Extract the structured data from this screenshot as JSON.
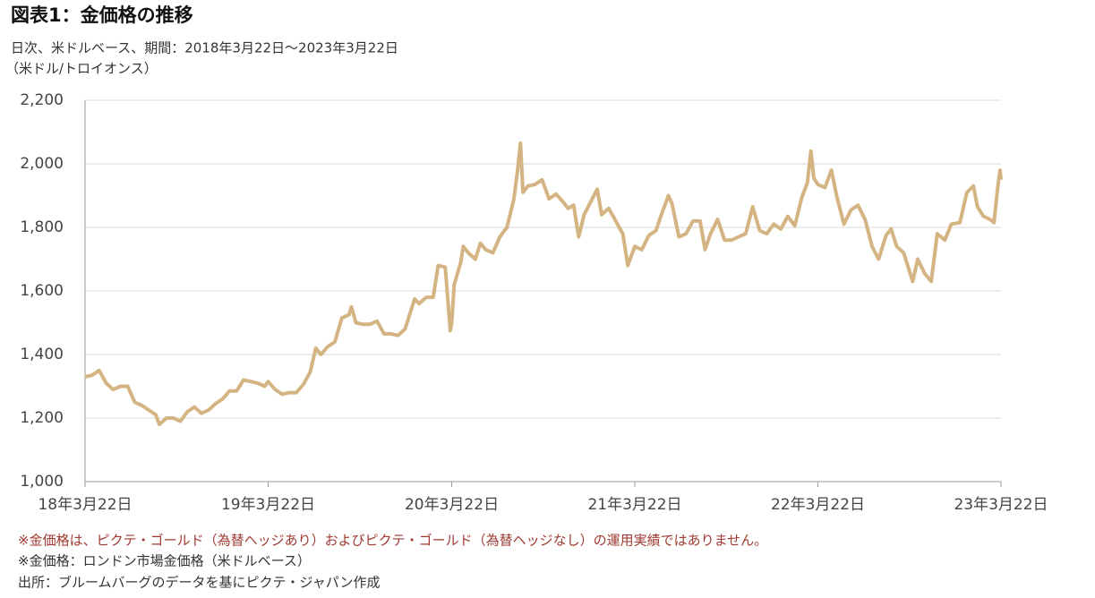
{
  "chart_data": {
    "type": "line",
    "title": "図表1：金価格の推移",
    "subtitle": "日次、米ドルベース、期間：2018年3月22日～2023年3月22日",
    "y_label": "（米ドル/トロイオンス）",
    "color": "#d4b483",
    "grid": true,
    "xlim": [
      "2018-03-22",
      "2023-03-22"
    ],
    "xticks": [
      {
        "value": "2018-03-22",
        "label": "18年3月22日"
      },
      {
        "value": "2019-03-22",
        "label": "19年3月22日"
      },
      {
        "value": "2020-03-22",
        "label": "20年3月22日"
      },
      {
        "value": "2021-03-22",
        "label": "21年3月22日"
      },
      {
        "value": "2022-03-22",
        "label": "22年3月22日"
      },
      {
        "value": "2023-03-22",
        "label": "23年3月22日"
      }
    ],
    "ylim": [
      1000,
      2200
    ],
    "yticks": [
      {
        "value": 1000,
        "label": "1,000"
      },
      {
        "value": 1200,
        "label": "1,200"
      },
      {
        "value": 1400,
        "label": "1,400"
      },
      {
        "value": 1600,
        "label": "1,600"
      },
      {
        "value": 1800,
        "label": "1,800"
      },
      {
        "value": 2000,
        "label": "2,000"
      },
      {
        "value": 2200,
        "label": "2,200"
      }
    ],
    "x": [
      "2018-03-22",
      "2018-04-05",
      "2018-04-19",
      "2018-05-03",
      "2018-05-17",
      "2018-06-01",
      "2018-06-15",
      "2018-06-29",
      "2018-07-13",
      "2018-07-27",
      "2018-08-10",
      "2018-08-17",
      "2018-08-31",
      "2018-09-14",
      "2018-09-28",
      "2018-10-12",
      "2018-10-26",
      "2018-11-09",
      "2018-11-23",
      "2018-12-07",
      "2018-12-21",
      "2019-01-04",
      "2019-01-18",
      "2019-02-01",
      "2019-02-15",
      "2019-03-01",
      "2019-03-15",
      "2019-03-22",
      "2019-04-05",
      "2019-04-19",
      "2019-05-03",
      "2019-05-17",
      "2019-05-31",
      "2019-06-14",
      "2019-06-25",
      "2019-07-05",
      "2019-07-19",
      "2019-08-02",
      "2019-08-16",
      "2019-08-30",
      "2019-09-04",
      "2019-09-13",
      "2019-09-27",
      "2019-10-11",
      "2019-10-25",
      "2019-11-08",
      "2019-11-22",
      "2019-12-06",
      "2019-12-20",
      "2020-01-08",
      "2020-01-17",
      "2020-01-31",
      "2020-02-14",
      "2020-02-24",
      "2020-03-09",
      "2020-03-19",
      "2020-03-22",
      "2020-03-27",
      "2020-04-09",
      "2020-04-14",
      "2020-04-24",
      "2020-05-08",
      "2020-05-18",
      "2020-05-29",
      "2020-06-12",
      "2020-06-26",
      "2020-07-10",
      "2020-07-24",
      "2020-07-31",
      "2020-08-06",
      "2020-08-11",
      "2020-08-21",
      "2020-09-04",
      "2020-09-18",
      "2020-10-02",
      "2020-10-16",
      "2020-10-30",
      "2020-11-09",
      "2020-11-20",
      "2020-11-30",
      "2020-12-11",
      "2020-12-24",
      "2021-01-06",
      "2021-01-15",
      "2021-01-29",
      "2021-02-12",
      "2021-02-26",
      "2021-03-08",
      "2021-03-22",
      "2021-04-05",
      "2021-04-19",
      "2021-05-03",
      "2021-05-14",
      "2021-05-28",
      "2021-06-04",
      "2021-06-18",
      "2021-07-02",
      "2021-07-16",
      "2021-07-30",
      "2021-08-09",
      "2021-08-20",
      "2021-09-03",
      "2021-09-17",
      "2021-10-01",
      "2021-10-15",
      "2021-10-29",
      "2021-11-12",
      "2021-11-26",
      "2021-12-10",
      "2021-12-24",
      "2022-01-07",
      "2022-01-21",
      "2022-02-04",
      "2022-02-18",
      "2022-03-01",
      "2022-03-08",
      "2022-03-14",
      "2022-03-22",
      "2022-04-05",
      "2022-04-18",
      "2022-04-29",
      "2022-05-13",
      "2022-05-27",
      "2022-06-10",
      "2022-06-24",
      "2022-07-08",
      "2022-07-21",
      "2022-08-05",
      "2022-08-15",
      "2022-08-26",
      "2022-09-09",
      "2022-09-27",
      "2022-10-07",
      "2022-10-21",
      "2022-11-03",
      "2022-11-15",
      "2022-11-30",
      "2022-12-13",
      "2022-12-30",
      "2023-01-13",
      "2023-01-26",
      "2023-02-03",
      "2023-02-15",
      "2023-02-28",
      "2023-03-08",
      "2023-03-15",
      "2023-03-20",
      "2023-03-22"
    ],
    "values": [
      1330,
      1335,
      1350,
      1310,
      1290,
      1300,
      1300,
      1250,
      1240,
      1225,
      1210,
      1180,
      1200,
      1200,
      1190,
      1220,
      1235,
      1215,
      1225,
      1245,
      1260,
      1285,
      1285,
      1320,
      1315,
      1310,
      1300,
      1315,
      1290,
      1275,
      1280,
      1280,
      1305,
      1345,
      1420,
      1400,
      1425,
      1440,
      1515,
      1525,
      1550,
      1500,
      1495,
      1495,
      1505,
      1465,
      1465,
      1460,
      1480,
      1575,
      1560,
      1580,
      1580,
      1680,
      1675,
      1475,
      1500,
      1620,
      1690,
      1740,
      1720,
      1700,
      1750,
      1730,
      1720,
      1770,
      1800,
      1890,
      1975,
      2065,
      1910,
      1930,
      1935,
      1950,
      1890,
      1905,
      1880,
      1860,
      1870,
      1770,
      1840,
      1880,
      1920,
      1840,
      1860,
      1820,
      1780,
      1680,
      1740,
      1730,
      1775,
      1790,
      1840,
      1900,
      1875,
      1770,
      1780,
      1820,
      1820,
      1730,
      1780,
      1825,
      1760,
      1760,
      1770,
      1780,
      1865,
      1790,
      1780,
      1810,
      1795,
      1835,
      1805,
      1895,
      1940,
      2040,
      1955,
      1935,
      1925,
      1980,
      1895,
      1810,
      1855,
      1870,
      1825,
      1740,
      1700,
      1775,
      1795,
      1740,
      1720,
      1630,
      1700,
      1655,
      1630,
      1780,
      1760,
      1810,
      1815,
      1910,
      1930,
      1865,
      1835,
      1825,
      1815,
      1920,
      1980,
      1950
    ],
    "notes": [
      "※金価格は、ピクテ・ゴールド（為替ヘッジあり）およびピクテ・ゴールド（為替ヘッジなし）の運用実績ではありません。",
      "※金価格：ロンドン市場金価格（米ドルベース）",
      "出所：ブルームバーグのデータを基にピクテ・ジャパン作成"
    ]
  }
}
